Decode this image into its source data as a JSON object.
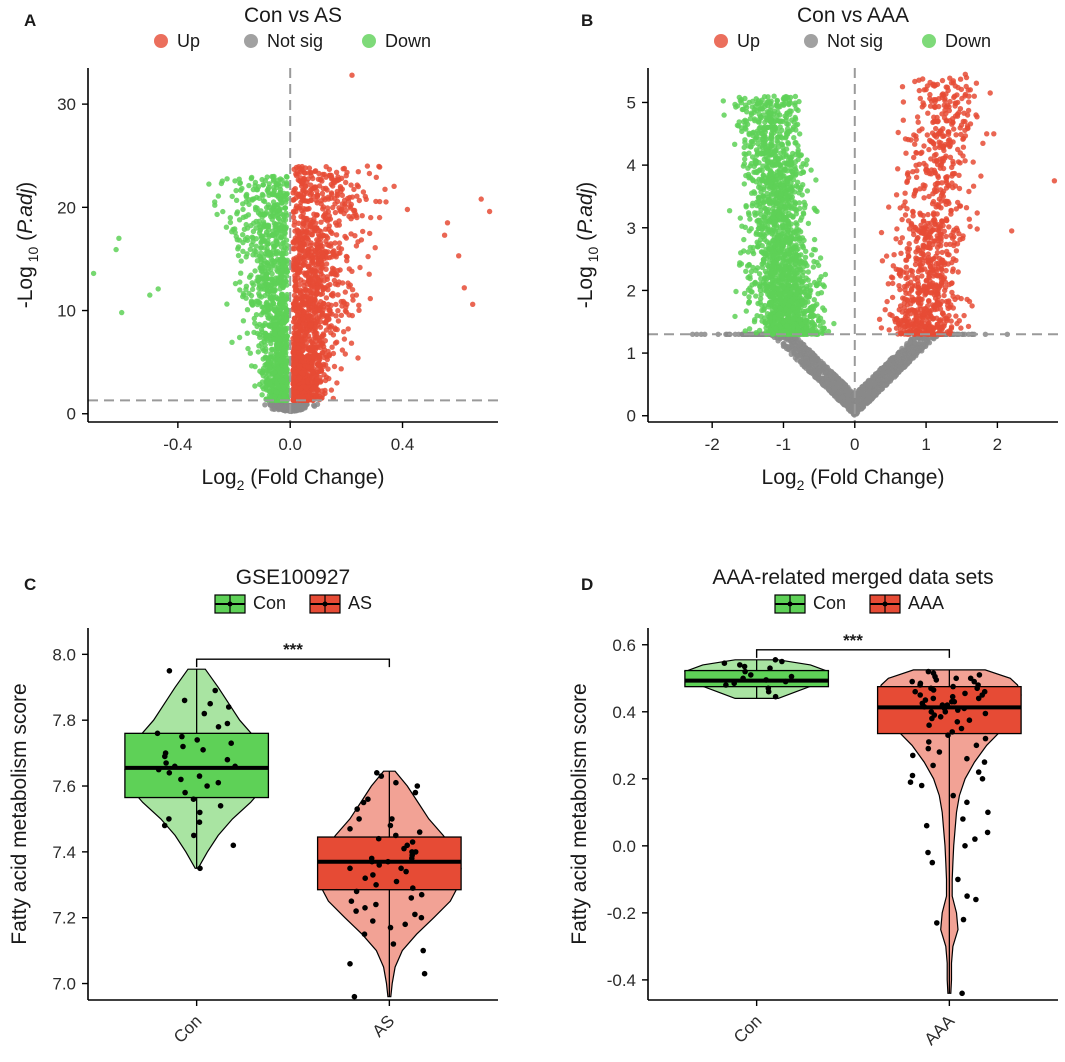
{
  "chart_data": [
    {
      "panel": "A",
      "type": "scatter",
      "subtype": "volcano",
      "title": "Con vs AS",
      "xlabel_main": "Log",
      "xlabel_sub": "2",
      "xlabel_rest": " (Fold Change)",
      "ylabel_main": "-Log",
      "ylabel_sub": "10",
      "ylabel_italic": "P.adj",
      "xlim": [
        -0.72,
        0.74
      ],
      "ylim": [
        -0.8,
        33.5
      ],
      "xticks": [
        -0.4,
        0.0,
        0.4
      ],
      "xtick_labels": [
        "-0.4",
        "0.0",
        "0.4"
      ],
      "yticks": [
        0,
        10,
        20,
        30
      ],
      "ytick_labels": [
        "0",
        "10",
        "20",
        "30"
      ],
      "fc_cutoff": 0.0,
      "p_cutoff": 1.3,
      "legend": [
        {
          "name": "Up",
          "color": "#E64B35"
        },
        {
          "name": "Not sig",
          "color": "#8a8a8a"
        },
        {
          "name": "Down",
          "color": "#5ED157"
        }
      ],
      "up_cloud": {
        "x_center": 0.12,
        "x_spread": 0.26,
        "y_max": 24,
        "count": 1600
      },
      "down_cloud": {
        "x_center": -0.1,
        "x_spread": 0.2,
        "y_max": 23,
        "count": 1200
      },
      "notsig_cloud": {
        "x_spread": 0.1,
        "y_max": 1.3,
        "count": 250
      },
      "outliers": [
        {
          "x": 0.22,
          "y": 32.8,
          "group": "Up"
        },
        {
          "x": 0.68,
          "y": 20.8,
          "group": "Up"
        },
        {
          "x": 0.71,
          "y": 19.6,
          "group": "Up"
        },
        {
          "x": 0.56,
          "y": 18.5,
          "group": "Up"
        },
        {
          "x": 0.55,
          "y": 17.3,
          "group": "Up"
        },
        {
          "x": 0.6,
          "y": 15.3,
          "group": "Up"
        },
        {
          "x": 0.62,
          "y": 12.2,
          "group": "Up"
        },
        {
          "x": 0.65,
          "y": 10.6,
          "group": "Up"
        },
        {
          "x": -0.7,
          "y": 13.6,
          "group": "Down"
        },
        {
          "x": -0.61,
          "y": 17.0,
          "group": "Down"
        },
        {
          "x": -0.62,
          "y": 15.9,
          "group": "Down"
        },
        {
          "x": -0.6,
          "y": 9.8,
          "group": "Down"
        },
        {
          "x": -0.5,
          "y": 11.5,
          "group": "Down"
        },
        {
          "x": -0.47,
          "y": 12.1,
          "group": "Down"
        }
      ]
    },
    {
      "panel": "B",
      "type": "scatter",
      "subtype": "volcano",
      "title": "Con vs AAA",
      "xlabel_main": "Log",
      "xlabel_sub": "2",
      "xlabel_rest": " (Fold Change)",
      "ylabel_main": "-Log",
      "ylabel_sub": "10",
      "ylabel_italic": "P.adj",
      "xlim": [
        -2.9,
        2.85
      ],
      "ylim": [
        -0.1,
        5.55
      ],
      "xticks": [
        -2,
        -1,
        0,
        1,
        2
      ],
      "xtick_labels": [
        "-2",
        "-1",
        "0",
        "1",
        "2"
      ],
      "yticks": [
        0,
        1,
        2,
        3,
        4,
        5
      ],
      "ytick_labels": [
        "0",
        "1",
        "2",
        "3",
        "4",
        "5"
      ],
      "fc_cutoff": 0.0,
      "p_cutoff": 1.3,
      "legend": [
        {
          "name": "Up",
          "color": "#E64B35"
        },
        {
          "name": "Not sig",
          "color": "#8a8a8a"
        },
        {
          "name": "Down",
          "color": "#5ED157"
        }
      ],
      "up_cloud": {
        "x_center": 0.95,
        "x_spread": 0.45,
        "y_max": 5.4,
        "count": 900
      },
      "down_cloud": {
        "x_center": -0.9,
        "x_spread": 0.4,
        "y_max": 5.1,
        "count": 1800
      },
      "notsig_cloud": {
        "x_spread": 1.4,
        "y_max": 1.3,
        "count": 1500
      },
      "outliers": [
        {
          "x": 2.8,
          "y": 3.75,
          "group": "Up"
        },
        {
          "x": 2.2,
          "y": 2.95,
          "group": "Up"
        },
        {
          "x": 1.55,
          "y": 5.45,
          "group": "Up"
        },
        {
          "x": 1.4,
          "y": 5.1,
          "group": "Up"
        },
        {
          "x": 1.6,
          "y": 5.1,
          "group": "Up"
        },
        {
          "x": 1.95,
          "y": 4.5,
          "group": "Up"
        },
        {
          "x": 1.85,
          "y": 4.5,
          "group": "Up"
        },
        {
          "x": 1.7,
          "y": 4.8,
          "group": "Up"
        },
        {
          "x": -1.55,
          "y": 3.7,
          "group": "Down"
        },
        {
          "x": -1.6,
          "y": 2.6,
          "group": "Down"
        },
        {
          "x": -1.52,
          "y": 4.7,
          "group": "Down"
        },
        {
          "x": -1.45,
          "y": 2.3,
          "group": "Down"
        },
        {
          "x": -0.9,
          "y": 5.08,
          "group": "Down"
        }
      ]
    },
    {
      "panel": "C",
      "type": "violin-box",
      "title": "GSE100927",
      "ylabel": "Fatty acid metabolism score",
      "categories": [
        "Con",
        "AS"
      ],
      "ylim": [
        6.95,
        8.08
      ],
      "yticks": [
        7.0,
        7.2,
        7.4,
        7.6,
        7.8,
        8.0
      ],
      "ytick_labels": [
        "7.0",
        "7.2",
        "7.4",
        "7.6",
        "7.8",
        "8.0"
      ],
      "significance": "***",
      "groups": [
        {
          "name": "Con",
          "fill": "#5ED157",
          "violin_fill": "#A9E4A2",
          "min": 7.35,
          "q1": 7.565,
          "median": 7.655,
          "q3": 7.76,
          "max": 7.955,
          "density": [
            [
              7.35,
              0.02
            ],
            [
              7.4,
              0.15
            ],
            [
              7.45,
              0.3
            ],
            [
              7.5,
              0.5
            ],
            [
              7.55,
              0.75
            ],
            [
              7.6,
              0.95
            ],
            [
              7.65,
              1.0
            ],
            [
              7.7,
              0.95
            ],
            [
              7.75,
              0.8
            ],
            [
              7.8,
              0.6
            ],
            [
              7.85,
              0.45
            ],
            [
              7.9,
              0.3
            ],
            [
              7.955,
              0.12
            ]
          ],
          "points": [
            7.95,
            7.89,
            7.86,
            7.85,
            7.84,
            7.82,
            7.79,
            7.78,
            7.76,
            7.75,
            7.74,
            7.73,
            7.72,
            7.71,
            7.7,
            7.69,
            7.68,
            7.67,
            7.66,
            7.66,
            7.65,
            7.64,
            7.63,
            7.62,
            7.61,
            7.6,
            7.58,
            7.56,
            7.54,
            7.52,
            7.5,
            7.49,
            7.48,
            7.45,
            7.42,
            7.35
          ]
        },
        {
          "name": "AS",
          "fill": "#E64B35",
          "violin_fill": "#F2A295",
          "min": 6.96,
          "q1": 7.285,
          "median": 7.37,
          "q3": 7.445,
          "max": 7.645,
          "density": [
            [
              6.96,
              0.02
            ],
            [
              7.0,
              0.04
            ],
            [
              7.05,
              0.08
            ],
            [
              7.1,
              0.18
            ],
            [
              7.15,
              0.38
            ],
            [
              7.2,
              0.62
            ],
            [
              7.25,
              0.85
            ],
            [
              7.3,
              0.97
            ],
            [
              7.35,
              1.0
            ],
            [
              7.4,
              0.93
            ],
            [
              7.45,
              0.75
            ],
            [
              7.5,
              0.55
            ],
            [
              7.55,
              0.4
            ],
            [
              7.6,
              0.25
            ],
            [
              7.645,
              0.08
            ]
          ],
          "points": [
            7.64,
            7.63,
            7.61,
            7.6,
            7.58,
            7.56,
            7.55,
            7.53,
            7.5,
            7.5,
            7.48,
            7.47,
            7.46,
            7.45,
            7.44,
            7.43,
            7.42,
            7.41,
            7.4,
            7.4,
            7.39,
            7.38,
            7.38,
            7.37,
            7.37,
            7.36,
            7.35,
            7.35,
            7.34,
            7.33,
            7.32,
            7.31,
            7.3,
            7.29,
            7.28,
            7.27,
            7.26,
            7.25,
            7.24,
            7.23,
            7.22,
            7.21,
            7.2,
            7.19,
            7.18,
            7.17,
            7.15,
            7.12,
            7.1,
            7.06,
            7.03,
            6.96
          ]
        }
      ]
    },
    {
      "panel": "D",
      "type": "violin-box",
      "title": "AAA-related merged data sets",
      "ylabel": "Fatty acid metabolism score",
      "categories": [
        "Con",
        "AAA"
      ],
      "ylim": [
        -0.46,
        0.65
      ],
      "yticks": [
        -0.4,
        -0.2,
        0.0,
        0.2,
        0.4,
        0.6
      ],
      "ytick_labels": [
        "-0.4",
        "-0.2",
        "0.0",
        "0.2",
        "0.4",
        "0.6"
      ],
      "significance": "***",
      "groups": [
        {
          "name": "Con",
          "fill": "#5ED157",
          "violin_fill": "#A9E4A2",
          "min": 0.44,
          "q1": 0.475,
          "median": 0.493,
          "q3": 0.523,
          "max": 0.555,
          "density": [
            [
              0.44,
              0.3
            ],
            [
              0.46,
              0.55
            ],
            [
              0.48,
              0.8
            ],
            [
              0.5,
              0.95
            ],
            [
              0.52,
              1.0
            ],
            [
              0.54,
              0.75
            ],
            [
              0.555,
              0.3
            ]
          ],
          "points": [
            0.555,
            0.55,
            0.545,
            0.54,
            0.535,
            0.53,
            0.52,
            0.51,
            0.505,
            0.5,
            0.495,
            0.49,
            0.485,
            0.48,
            0.47,
            0.46,
            0.445
          ]
        },
        {
          "name": "AAA",
          "fill": "#E64B35",
          "violin_fill": "#F2A295",
          "min": -0.44,
          "q1": 0.335,
          "median": 0.413,
          "q3": 0.475,
          "max": 0.525,
          "density": [
            [
              -0.44,
              0.02
            ],
            [
              -0.4,
              0.03
            ],
            [
              -0.35,
              0.03
            ],
            [
              -0.3,
              0.05
            ],
            [
              -0.25,
              0.12
            ],
            [
              -0.2,
              0.1
            ],
            [
              -0.15,
              0.04
            ],
            [
              -0.1,
              0.04
            ],
            [
              -0.05,
              0.05
            ],
            [
              0.0,
              0.06
            ],
            [
              0.05,
              0.08
            ],
            [
              0.1,
              0.1
            ],
            [
              0.15,
              0.14
            ],
            [
              0.2,
              0.22
            ],
            [
              0.25,
              0.35
            ],
            [
              0.3,
              0.52
            ],
            [
              0.35,
              0.75
            ],
            [
              0.4,
              0.92
            ],
            [
              0.45,
              1.0
            ],
            [
              0.48,
              0.95
            ],
            [
              0.5,
              0.85
            ],
            [
              0.525,
              0.5
            ]
          ],
          "points": [
            0.52,
            0.515,
            0.51,
            0.505,
            0.5,
            0.5,
            0.495,
            0.49,
            0.49,
            0.485,
            0.48,
            0.48,
            0.475,
            0.47,
            0.47,
            0.465,
            0.46,
            0.46,
            0.455,
            0.45,
            0.45,
            0.445,
            0.44,
            0.44,
            0.435,
            0.43,
            0.43,
            0.425,
            0.42,
            0.42,
            0.415,
            0.41,
            0.41,
            0.405,
            0.4,
            0.4,
            0.395,
            0.39,
            0.385,
            0.38,
            0.375,
            0.37,
            0.36,
            0.35,
            0.34,
            0.33,
            0.32,
            0.31,
            0.3,
            0.29,
            0.28,
            0.27,
            0.26,
            0.25,
            0.24,
            0.22,
            0.21,
            0.2,
            0.19,
            0.18,
            0.15,
            0.13,
            0.1,
            0.08,
            0.06,
            0.04,
            0.02,
            0.0,
            -0.02,
            -0.05,
            -0.1,
            -0.15,
            -0.16,
            -0.22,
            -0.23,
            -0.44
          ]
        }
      ]
    }
  ]
}
